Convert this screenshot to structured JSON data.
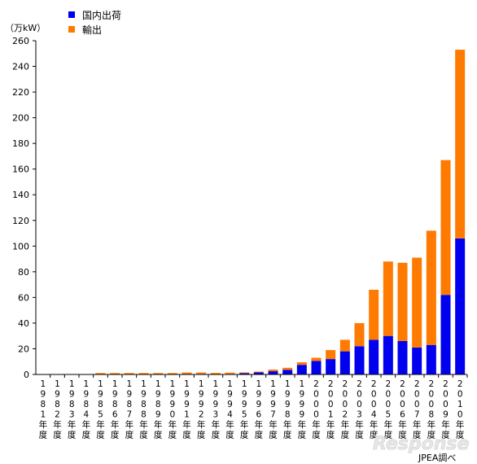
{
  "chart_data": {
    "type": "bar",
    "stacked": true,
    "unit_label": "（万kW）",
    "ylim": [
      0,
      260
    ],
    "yticks": [
      0,
      20,
      40,
      60,
      80,
      100,
      120,
      140,
      160,
      180,
      200,
      220,
      240,
      260
    ],
    "grid": false,
    "legend_position": "top",
    "categories": [
      "1981年度",
      "1982年度",
      "1983年度",
      "1984年度",
      "1985年度",
      "1986年度",
      "1987年度",
      "1988年度",
      "1989年度",
      "1990年度",
      "1991年度",
      "1992年度",
      "1993年度",
      "1994年度",
      "1995年度",
      "1996年度",
      "1997年度",
      "1998年度",
      "1999年度",
      "2000年度",
      "2001年度",
      "2002年度",
      "2003年度",
      "2004年度",
      "2005年度",
      "2006年度",
      "2007年度",
      "2008年度",
      "2009年度",
      "2010年度"
    ],
    "series": [
      {
        "name": "国内出荷",
        "color": "#0000ee",
        "values": [
          0,
          0,
          0,
          0,
          0.3,
          0.3,
          0.3,
          0.3,
          0.3,
          0.3,
          0.3,
          0.4,
          0.3,
          0.4,
          1,
          1.6,
          2.5,
          3.6,
          7.5,
          10.5,
          12,
          18,
          22,
          27,
          30,
          26,
          21,
          23,
          62,
          106
        ]
      },
      {
        "name": "輸出",
        "color": "#ff7a00",
        "values": [
          0,
          0,
          0,
          0,
          0.8,
          0.8,
          0.8,
          0.8,
          0.8,
          0.8,
          1.2,
          1.1,
          0.9,
          1.0,
          0.6,
          0.6,
          1.3,
          1.6,
          2.0,
          2.5,
          7,
          9,
          18,
          39,
          58,
          61,
          70,
          89,
          105,
          147
        ]
      }
    ]
  },
  "source_note": "JPEA調べ",
  "watermark": "Response"
}
